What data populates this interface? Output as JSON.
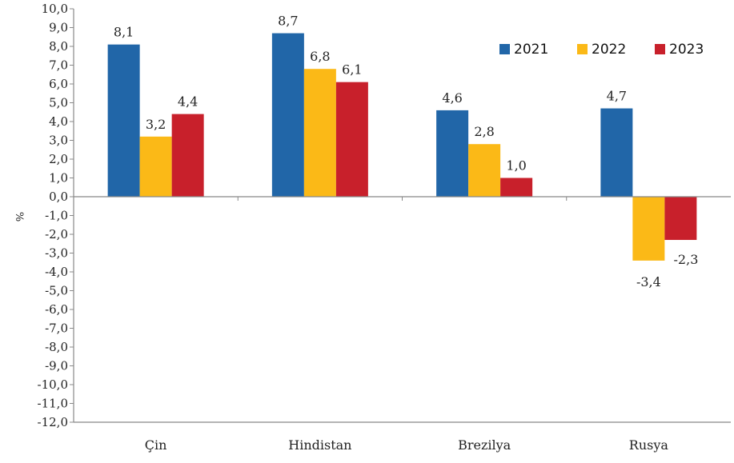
{
  "chart_data": {
    "type": "bar",
    "title": "",
    "xlabel": "",
    "ylabel": "%",
    "ylim": [
      -12,
      10
    ],
    "ytick_step": 1,
    "ytick_labels": [
      "10,0",
      "9,0",
      "8,0",
      "7,0",
      "6,0",
      "5,0",
      "4,0",
      "3,0",
      "2,0",
      "1,0",
      "0,0",
      "-1,0",
      "-2,0",
      "-3,0",
      "-4,0",
      "-5,0",
      "-6,0",
      "-7,0",
      "-8,0",
      "-9,0",
      "-10,0",
      "-11,0",
      "-12,0"
    ],
    "categories": [
      "Çin",
      "Hindistan",
      "Brezilya",
      "Rusya"
    ],
    "series": [
      {
        "name": "2021",
        "color": "#2166a8",
        "values": [
          8.1,
          8.7,
          4.6,
          4.7
        ],
        "labels": [
          "8,1",
          "8,7",
          "4,6",
          "4,7"
        ]
      },
      {
        "name": "2022",
        "color": "#fbb917",
        "values": [
          3.2,
          6.8,
          2.8,
          -3.4
        ],
        "labels": [
          "3,2",
          "6,8",
          "2,8",
          "-3,4"
        ]
      },
      {
        "name": "2023",
        "color": "#c8202b",
        "values": [
          4.4,
          6.1,
          1.0,
          -2.3
        ],
        "labels": [
          "4,4",
          "6,1",
          "1,0",
          "-2,3"
        ]
      }
    ],
    "legend_position": "top-right",
    "grid": false
  }
}
